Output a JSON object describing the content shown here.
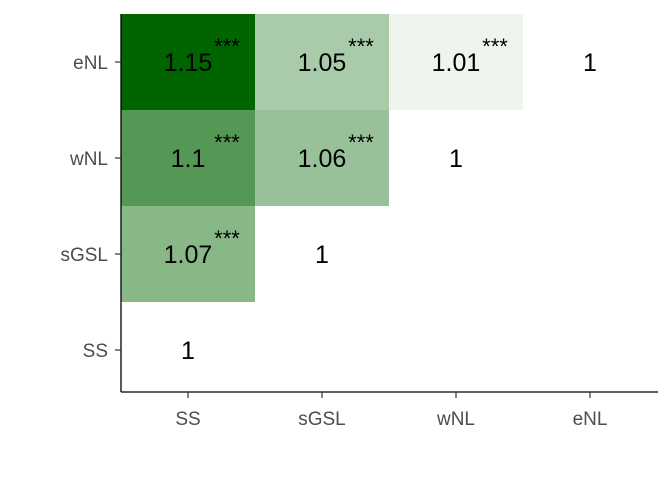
{
  "chart_data": {
    "type": "heatmap",
    "title": "",
    "xlabel": "",
    "ylabel": "",
    "x_categories": [
      "SS",
      "sGSL",
      "wNL",
      "eNL"
    ],
    "y_categories": [
      "SS",
      "sGSL",
      "wNL",
      "eNL"
    ],
    "grid": false,
    "legend": "none",
    "color_scale": {
      "low": "#ffffff",
      "high": "#006400",
      "domain": [
        1.0,
        1.15
      ]
    },
    "cells": [
      {
        "x": "SS",
        "y": "eNL",
        "value": 1.15,
        "label": "1.15",
        "sig": "***"
      },
      {
        "x": "sGSL",
        "y": "eNL",
        "value": 1.05,
        "label": "1.05",
        "sig": "***"
      },
      {
        "x": "wNL",
        "y": "eNL",
        "value": 1.01,
        "label": "1.01",
        "sig": "***"
      },
      {
        "x": "eNL",
        "y": "eNL",
        "value": 1,
        "label": "1",
        "sig": ""
      },
      {
        "x": "SS",
        "y": "wNL",
        "value": 1.1,
        "label": "1.1",
        "sig": "***"
      },
      {
        "x": "sGSL",
        "y": "wNL",
        "value": 1.06,
        "label": "1.06",
        "sig": "***"
      },
      {
        "x": "wNL",
        "y": "wNL",
        "value": 1,
        "label": "1",
        "sig": ""
      },
      {
        "x": "SS",
        "y": "sGSL",
        "value": 1.07,
        "label": "1.07",
        "sig": "***"
      },
      {
        "x": "sGSL",
        "y": "sGSL",
        "value": 1,
        "label": "1",
        "sig": ""
      },
      {
        "x": "SS",
        "y": "SS",
        "value": 1,
        "label": "1",
        "sig": ""
      }
    ]
  }
}
